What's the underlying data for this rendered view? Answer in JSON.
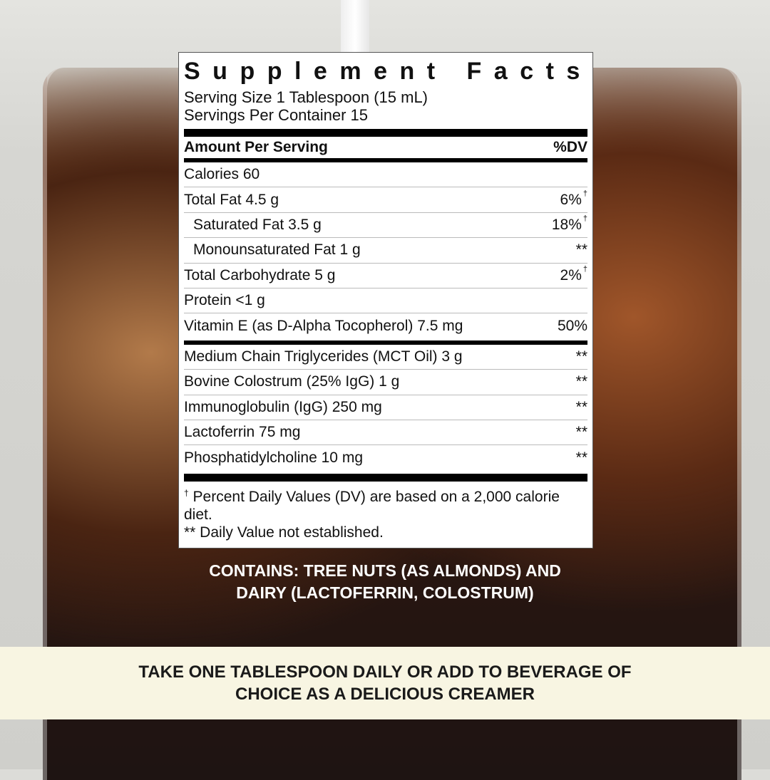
{
  "label": {
    "title": "Supplement Facts",
    "serving_size": "Serving Size 1 Tablespoon (15 mL)",
    "servings_per_container": "Servings Per Container 15",
    "header_left": "Amount Per Serving",
    "header_right": "%DV",
    "calories": "Calories 60",
    "nutrients": [
      {
        "name": "Total Fat 4.5 g",
        "dv": "6%",
        "mark": "†"
      },
      {
        "name": "Saturated Fat 3.5 g",
        "dv": "18%",
        "mark": "†"
      },
      {
        "name": "Monounsaturated Fat 1 g",
        "dv": "**",
        "mark": ""
      },
      {
        "name": "Total Carbohydrate 5 g",
        "dv": "2%",
        "mark": "†"
      },
      {
        "name": "Protein <1 g",
        "dv": "",
        "mark": ""
      },
      {
        "name": "Vitamin E (as D-Alpha Tocopherol) 7.5 mg",
        "dv": "50%",
        "mark": ""
      }
    ],
    "other": [
      {
        "name": "Medium Chain Triglycerides (MCT Oil) 3 g",
        "dv": "**"
      },
      {
        "name": "Bovine Colostrum (25% IgG) 1 g",
        "dv": "**"
      },
      {
        "name": "Immunoglobulin (IgG) 250 mg",
        "dv": "**"
      },
      {
        "name": "Lactoferrin 75 mg",
        "dv": "**"
      },
      {
        "name": "Phosphatidylcholine 10 mg",
        "dv": "**"
      }
    ],
    "footnote_mark": "†",
    "footnote_1": "Percent Daily Values (DV) are based on a 2,000 calorie diet.",
    "footnote_2": "** Daily Value not established."
  },
  "contains": {
    "line1": "CONTAINS: TREE NUTS (AS ALMONDS) AND",
    "line2": "DAIRY (LACTOFERRIN, COLOSTRUM)"
  },
  "banner": {
    "line1": "TAKE ONE TABLESPOON DAILY OR ADD TO BEVERAGE OF",
    "line2": "CHOICE AS A DELICIOUS CREAMER"
  },
  "colors": {
    "banner_bg": "#f8f5e2",
    "coffee": "#2a1610"
  }
}
